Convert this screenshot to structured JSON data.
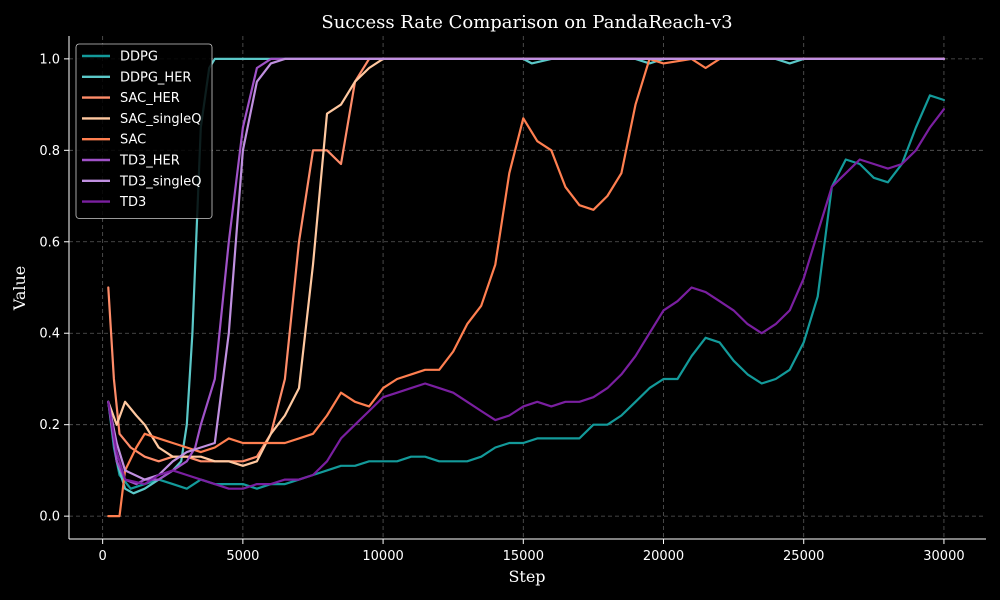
{
  "chart_data": {
    "type": "line",
    "title": "Success Rate Comparison on PandaReach-v3",
    "xlabel": "Step",
    "ylabel": "Value",
    "xlim": [
      -1200,
      31500
    ],
    "ylim": [
      -0.05,
      1.05
    ],
    "xticks": [
      0,
      5000,
      10000,
      15000,
      20000,
      25000,
      30000
    ],
    "xtick_labels": [
      "0",
      "5000",
      "10000",
      "15000",
      "20000",
      "25000",
      "30000"
    ],
    "yticks": [
      0.0,
      0.2,
      0.4,
      0.6,
      0.8,
      1.0
    ],
    "ytick_labels": [
      "0.0",
      "0.2",
      "0.4",
      "0.6",
      "0.8",
      "1.0"
    ],
    "grid": true,
    "legend_position": "top-left",
    "background": "#000000",
    "series": [
      {
        "name": "DDPG",
        "color": "#139a9a",
        "points": [
          [
            200,
            0.25
          ],
          [
            400,
            0.15
          ],
          [
            600,
            0.09
          ],
          [
            1000,
            0.06
          ],
          [
            1500,
            0.07
          ],
          [
            2000,
            0.08
          ],
          [
            2500,
            0.07
          ],
          [
            3000,
            0.06
          ],
          [
            3500,
            0.08
          ],
          [
            4000,
            0.07
          ],
          [
            4500,
            0.07
          ],
          [
            5000,
            0.07
          ],
          [
            5500,
            0.06
          ],
          [
            6000,
            0.07
          ],
          [
            6500,
            0.07
          ],
          [
            7000,
            0.08
          ],
          [
            7500,
            0.09
          ],
          [
            8000,
            0.1
          ],
          [
            8500,
            0.11
          ],
          [
            9000,
            0.11
          ],
          [
            9500,
            0.12
          ],
          [
            10000,
            0.12
          ],
          [
            10500,
            0.12
          ],
          [
            11000,
            0.13
          ],
          [
            11500,
            0.13
          ],
          [
            12000,
            0.12
          ],
          [
            12500,
            0.12
          ],
          [
            13000,
            0.12
          ],
          [
            13500,
            0.13
          ],
          [
            14000,
            0.15
          ],
          [
            14500,
            0.16
          ],
          [
            15000,
            0.16
          ],
          [
            15500,
            0.17
          ],
          [
            16000,
            0.17
          ],
          [
            16500,
            0.17
          ],
          [
            17000,
            0.17
          ],
          [
            17500,
            0.2
          ],
          [
            18000,
            0.2
          ],
          [
            18500,
            0.22
          ],
          [
            19000,
            0.25
          ],
          [
            19500,
            0.28
          ],
          [
            20000,
            0.3
          ],
          [
            20500,
            0.3
          ],
          [
            21000,
            0.35
          ],
          [
            21500,
            0.39
          ],
          [
            22000,
            0.38
          ],
          [
            22500,
            0.34
          ],
          [
            23000,
            0.31
          ],
          [
            23500,
            0.29
          ],
          [
            24000,
            0.3
          ],
          [
            24500,
            0.32
          ],
          [
            25000,
            0.38
          ],
          [
            25500,
            0.48
          ],
          [
            26000,
            0.72
          ],
          [
            26500,
            0.78
          ],
          [
            27000,
            0.77
          ],
          [
            27500,
            0.74
          ],
          [
            28000,
            0.73
          ],
          [
            28500,
            0.77
          ],
          [
            29000,
            0.85
          ],
          [
            29500,
            0.92
          ],
          [
            30000,
            0.91
          ]
        ]
      },
      {
        "name": "DDPG_HER",
        "color": "#5bc8c8",
        "points": [
          [
            200,
            0.25
          ],
          [
            500,
            0.12
          ],
          [
            800,
            0.06
          ],
          [
            1100,
            0.05
          ],
          [
            1500,
            0.06
          ],
          [
            2000,
            0.08
          ],
          [
            2500,
            0.1
          ],
          [
            2800,
            0.12
          ],
          [
            3000,
            0.2
          ],
          [
            3200,
            0.4
          ],
          [
            3500,
            0.85
          ],
          [
            3800,
            0.98
          ],
          [
            4000,
            1.0
          ],
          [
            15000,
            1.0
          ],
          [
            15300,
            0.99
          ],
          [
            16000,
            1.0
          ],
          [
            19000,
            1.0
          ],
          [
            19500,
            0.99
          ],
          [
            20000,
            1.0
          ],
          [
            24000,
            1.0
          ],
          [
            24500,
            0.99
          ],
          [
            25000,
            1.0
          ],
          [
            30000,
            1.0
          ]
        ]
      },
      {
        "name": "SAC_HER",
        "color": "#ff8c69",
        "points": [
          [
            200,
            0.5
          ],
          [
            400,
            0.3
          ],
          [
            600,
            0.18
          ],
          [
            1000,
            0.15
          ],
          [
            1500,
            0.13
          ],
          [
            2000,
            0.12
          ],
          [
            2500,
            0.13
          ],
          [
            3000,
            0.13
          ],
          [
            3500,
            0.12
          ],
          [
            4000,
            0.12
          ],
          [
            4500,
            0.12
          ],
          [
            5000,
            0.12
          ],
          [
            5500,
            0.13
          ],
          [
            6000,
            0.18
          ],
          [
            6500,
            0.3
          ],
          [
            7000,
            0.6
          ],
          [
            7500,
            0.8
          ],
          [
            8000,
            0.8
          ],
          [
            8500,
            0.77
          ],
          [
            9000,
            0.95
          ],
          [
            9500,
            1.0
          ],
          [
            30000,
            1.0
          ]
        ]
      },
      {
        "name": "SAC_singleQ",
        "color": "#ffc8a0",
        "points": [
          [
            200,
            0.25
          ],
          [
            500,
            0.2
          ],
          [
            800,
            0.25
          ],
          [
            1200,
            0.22
          ],
          [
            1500,
            0.2
          ],
          [
            2000,
            0.15
          ],
          [
            2500,
            0.13
          ],
          [
            3000,
            0.13
          ],
          [
            3500,
            0.13
          ],
          [
            4000,
            0.12
          ],
          [
            4500,
            0.12
          ],
          [
            5000,
            0.11
          ],
          [
            5500,
            0.12
          ],
          [
            6000,
            0.18
          ],
          [
            6500,
            0.22
          ],
          [
            7000,
            0.28
          ],
          [
            7500,
            0.55
          ],
          [
            8000,
            0.88
          ],
          [
            8500,
            0.9
          ],
          [
            9000,
            0.95
          ],
          [
            9500,
            0.98
          ],
          [
            10000,
            1.0
          ],
          [
            30000,
            1.0
          ]
        ]
      },
      {
        "name": "SAC",
        "color": "#ff7f50",
        "points": [
          [
            200,
            0.0
          ],
          [
            600,
            0.0
          ],
          [
            800,
            0.1
          ],
          [
            1200,
            0.15
          ],
          [
            1500,
            0.18
          ],
          [
            2000,
            0.17
          ],
          [
            2500,
            0.16
          ],
          [
            3000,
            0.15
          ],
          [
            3500,
            0.14
          ],
          [
            4000,
            0.15
          ],
          [
            4500,
            0.17
          ],
          [
            5000,
            0.16
          ],
          [
            5500,
            0.16
          ],
          [
            6000,
            0.16
          ],
          [
            6500,
            0.16
          ],
          [
            7000,
            0.17
          ],
          [
            7500,
            0.18
          ],
          [
            8000,
            0.22
          ],
          [
            8500,
            0.27
          ],
          [
            9000,
            0.25
          ],
          [
            9500,
            0.24
          ],
          [
            10000,
            0.28
          ],
          [
            10500,
            0.3
          ],
          [
            11000,
            0.31
          ],
          [
            11500,
            0.32
          ],
          [
            12000,
            0.32
          ],
          [
            12500,
            0.36
          ],
          [
            13000,
            0.42
          ],
          [
            13500,
            0.46
          ],
          [
            14000,
            0.55
          ],
          [
            14500,
            0.75
          ],
          [
            15000,
            0.87
          ],
          [
            15500,
            0.82
          ],
          [
            16000,
            0.8
          ],
          [
            16500,
            0.72
          ],
          [
            17000,
            0.68
          ],
          [
            17500,
            0.67
          ],
          [
            18000,
            0.7
          ],
          [
            18500,
            0.75
          ],
          [
            19000,
            0.9
          ],
          [
            19500,
            1.0
          ],
          [
            20000,
            0.99
          ],
          [
            21000,
            1.0
          ],
          [
            21500,
            0.98
          ],
          [
            22000,
            1.0
          ],
          [
            30000,
            1.0
          ]
        ]
      },
      {
        "name": "TD3_HER",
        "color": "#a052c8",
        "points": [
          [
            200,
            0.25
          ],
          [
            500,
            0.12
          ],
          [
            800,
            0.08
          ],
          [
            1200,
            0.07
          ],
          [
            1500,
            0.08
          ],
          [
            2000,
            0.08
          ],
          [
            2500,
            0.1
          ],
          [
            3000,
            0.12
          ],
          [
            3300,
            0.15
          ],
          [
            3500,
            0.2
          ],
          [
            4000,
            0.3
          ],
          [
            4500,
            0.6
          ],
          [
            5000,
            0.85
          ],
          [
            5500,
            0.98
          ],
          [
            6000,
            1.0
          ],
          [
            30000,
            1.0
          ]
        ]
      },
      {
        "name": "TD3_singleQ",
        "color": "#c090e0",
        "points": [
          [
            200,
            0.25
          ],
          [
            500,
            0.16
          ],
          [
            800,
            0.1
          ],
          [
            1500,
            0.08
          ],
          [
            2000,
            0.09
          ],
          [
            2500,
            0.12
          ],
          [
            3000,
            0.14
          ],
          [
            3500,
            0.15
          ],
          [
            4000,
            0.16
          ],
          [
            4500,
            0.4
          ],
          [
            5000,
            0.8
          ],
          [
            5500,
            0.95
          ],
          [
            6000,
            0.99
          ],
          [
            6500,
            1.0
          ],
          [
            30000,
            1.0
          ]
        ]
      },
      {
        "name": "TD3",
        "color": "#7a1fa0",
        "points": [
          [
            200,
            0.25
          ],
          [
            500,
            0.14
          ],
          [
            800,
            0.08
          ],
          [
            1500,
            0.07
          ],
          [
            2000,
            0.09
          ],
          [
            2500,
            0.1
          ],
          [
            3000,
            0.09
          ],
          [
            3500,
            0.08
          ],
          [
            4000,
            0.07
          ],
          [
            4500,
            0.06
          ],
          [
            5000,
            0.06
          ],
          [
            5500,
            0.07
          ],
          [
            6000,
            0.07
          ],
          [
            6500,
            0.08
          ],
          [
            7000,
            0.08
          ],
          [
            7500,
            0.09
          ],
          [
            8000,
            0.12
          ],
          [
            8500,
            0.17
          ],
          [
            9000,
            0.2
          ],
          [
            9500,
            0.23
          ],
          [
            10000,
            0.26
          ],
          [
            10500,
            0.27
          ],
          [
            11000,
            0.28
          ],
          [
            11500,
            0.29
          ],
          [
            12000,
            0.28
          ],
          [
            12500,
            0.27
          ],
          [
            13000,
            0.25
          ],
          [
            13500,
            0.23
          ],
          [
            14000,
            0.21
          ],
          [
            14500,
            0.22
          ],
          [
            15000,
            0.24
          ],
          [
            15500,
            0.25
          ],
          [
            16000,
            0.24
          ],
          [
            16500,
            0.25
          ],
          [
            17000,
            0.25
          ],
          [
            17500,
            0.26
          ],
          [
            18000,
            0.28
          ],
          [
            18500,
            0.31
          ],
          [
            19000,
            0.35
          ],
          [
            19500,
            0.4
          ],
          [
            20000,
            0.45
          ],
          [
            20500,
            0.47
          ],
          [
            21000,
            0.5
          ],
          [
            21500,
            0.49
          ],
          [
            22000,
            0.47
          ],
          [
            22500,
            0.45
          ],
          [
            23000,
            0.42
          ],
          [
            23500,
            0.4
          ],
          [
            24000,
            0.42
          ],
          [
            24500,
            0.45
          ],
          [
            25000,
            0.52
          ],
          [
            25500,
            0.62
          ],
          [
            26000,
            0.72
          ],
          [
            26500,
            0.75
          ],
          [
            27000,
            0.78
          ],
          [
            27500,
            0.77
          ],
          [
            28000,
            0.76
          ],
          [
            28500,
            0.77
          ],
          [
            29000,
            0.8
          ],
          [
            29500,
            0.85
          ],
          [
            30000,
            0.89
          ]
        ]
      }
    ]
  }
}
